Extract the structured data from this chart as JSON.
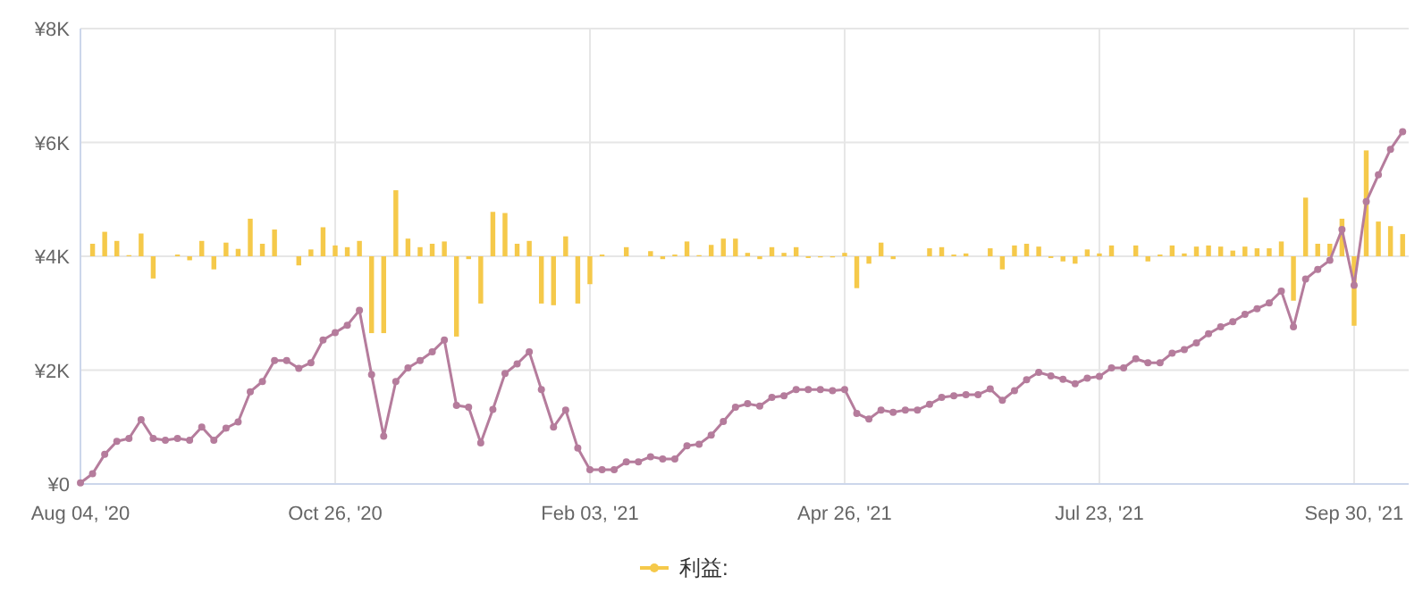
{
  "chart_data": {
    "type": "line",
    "categories": [
      "Aug 04, '20",
      null,
      null,
      null,
      null,
      null,
      null,
      null,
      null,
      null,
      null,
      null,
      null,
      null,
      null,
      null,
      null,
      null,
      null,
      null,
      null,
      "Oct 26, '20",
      null,
      null,
      null,
      null,
      null,
      null,
      null,
      null,
      null,
      null,
      null,
      null,
      null,
      null,
      null,
      null,
      null,
      null,
      null,
      null,
      "Feb 03, '21",
      null,
      null,
      null,
      null,
      null,
      null,
      null,
      null,
      null,
      null,
      null,
      null,
      null,
      null,
      null,
      null,
      null,
      null,
      null,
      null,
      "Apr 26, '21",
      null,
      null,
      null,
      null,
      null,
      null,
      null,
      null,
      null,
      null,
      null,
      null,
      null,
      null,
      null,
      null,
      null,
      null,
      null,
      null,
      "Jul 23, '21",
      null,
      null,
      null,
      null,
      null,
      null,
      null,
      null,
      null,
      null,
      null,
      null,
      null,
      null,
      null,
      null,
      null,
      null,
      null,
      null,
      "Sep 30, '21",
      null,
      null,
      null,
      null
    ],
    "series": [
      {
        "name": "利益:",
        "type": "bar",
        "color": "#f5c94a",
        "base": [
          null,
          4000,
          4000,
          4000,
          4000,
          4000,
          4000,
          null,
          4000,
          4000,
          4000,
          4000,
          4000,
          4000,
          4000,
          4000,
          4000,
          null,
          4000,
          4000,
          4000,
          4000,
          4000,
          4000,
          4000,
          4000,
          4000,
          4000,
          4000,
          4000,
          4000,
          4000,
          4000,
          4000,
          4000,
          4000,
          4000,
          4000,
          4000,
          4000,
          4000,
          4000,
          4000,
          4000,
          null,
          4000,
          null,
          4000,
          4000,
          4000,
          4000,
          4000,
          4000,
          4000,
          4000,
          4000,
          4000,
          4000,
          4000,
          4000,
          4000,
          4000,
          4000,
          4000,
          4000,
          4000,
          4000,
          4000,
          null,
          null,
          4000,
          4000,
          4000,
          4000,
          null,
          4000,
          4000,
          4000,
          4000,
          4000,
          4000,
          4000,
          4000,
          4000,
          4000,
          4000,
          null,
          4000,
          4000,
          4000,
          4000,
          4000,
          4000,
          4000,
          4000,
          4000,
          4000,
          4000,
          4000,
          4000,
          4000,
          4000,
          4000,
          4000,
          4000,
          4000,
          4000,
          4000,
          4000,
          4000
        ],
        "values": [
          null,
          220,
          430,
          270,
          20,
          400,
          -390,
          null,
          30,
          -70,
          270,
          -230,
          240,
          130,
          660,
          220,
          470,
          null,
          -160,
          120,
          510,
          190,
          160,
          270,
          -1350,
          -1350,
          1160,
          310,
          160,
          220,
          260,
          -1410,
          -50,
          -830,
          780,
          760,
          220,
          270,
          -830,
          -860,
          350,
          -830,
          -490,
          30,
          null,
          160,
          null,
          90,
          -50,
          30,
          260,
          20,
          200,
          310,
          310,
          60,
          -50,
          160,
          60,
          160,
          -30,
          -20,
          -20,
          60,
          -560,
          -130,
          240,
          -50,
          null,
          null,
          140,
          160,
          30,
          50,
          null,
          140,
          -230,
          190,
          220,
          170,
          -30,
          -90,
          -130,
          120,
          50,
          190,
          null,
          190,
          -90,
          30,
          190,
          50,
          170,
          190,
          170,
          100,
          170,
          140,
          140,
          260,
          -780,
          1030,
          220,
          220,
          660,
          -1220,
          1860,
          610,
          530,
          390
        ]
      },
      {
        "color": "#b57c9c",
        "values": [
          20,
          180,
          520,
          750,
          800,
          1130,
          800,
          770,
          800,
          770,
          1000,
          770,
          980,
          1090,
          1620,
          1800,
          2170,
          2170,
          2030,
          2130,
          2530,
          2660,
          2790,
          3050,
          1920,
          840,
          1800,
          2040,
          2170,
          2320,
          2530,
          1380,
          1350,
          720,
          1310,
          1940,
          2110,
          2320,
          1660,
          1000,
          1300,
          630,
          250,
          250,
          250,
          390,
          390,
          480,
          440,
          440,
          670,
          700,
          860,
          1100,
          1350,
          1410,
          1370,
          1520,
          1550,
          1660,
          1660,
          1660,
          1640,
          1660,
          1240,
          1140,
          1300,
          1260,
          1300,
          1300,
          1400,
          1520,
          1550,
          1570,
          1570,
          1670,
          1470,
          1640,
          1830,
          1960,
          1900,
          1840,
          1760,
          1860,
          1890,
          2040,
          2040,
          2200,
          2130,
          2130,
          2300,
          2360,
          2480,
          2640,
          2760,
          2850,
          2980,
          3080,
          3180,
          3390,
          2760,
          3600,
          3770,
          3930,
          4470,
          3490,
          4960,
          5430,
          5880,
          6190
        ]
      }
    ],
    "ylim": [
      0,
      8000
    ],
    "yticks": [
      {
        "value": 0,
        "label": "¥0"
      },
      {
        "value": 2000,
        "label": "¥2K"
      },
      {
        "value": 4000,
        "label": "¥4K"
      },
      {
        "value": 6000,
        "label": "¥6K"
      },
      {
        "value": 8000,
        "label": "¥8K"
      }
    ],
    "grid": true,
    "legend": "bottom",
    "marker": "circle",
    "line_style": "solid"
  }
}
